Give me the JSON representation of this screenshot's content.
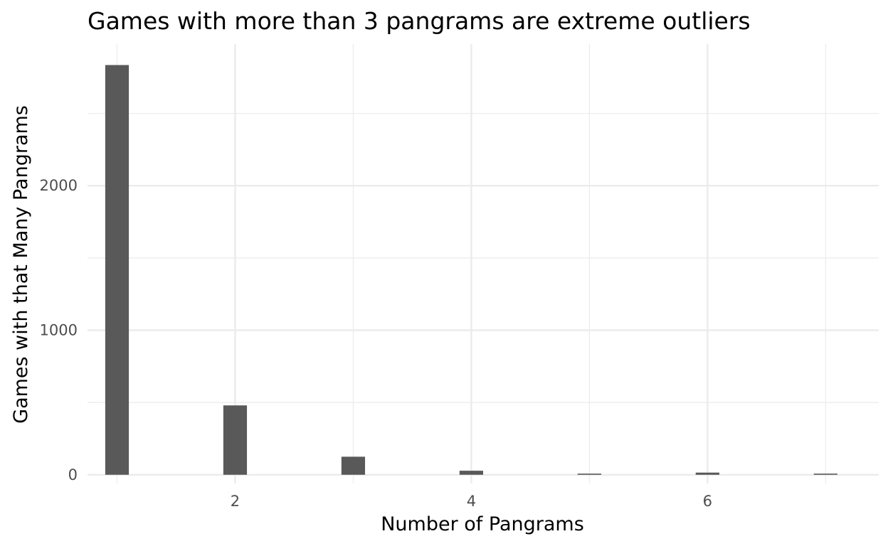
{
  "chart_data": {
    "type": "bar",
    "title": "Games with more than 3 pangrams are extreme outliers",
    "xlabel": "Number of Pangrams",
    "ylabel": "Games with that Many Pangrams",
    "x": [
      1,
      2,
      3,
      4,
      5,
      6,
      7
    ],
    "values": [
      2835,
      480,
      125,
      28,
      8,
      15,
      8
    ],
    "xlim": [
      0.75,
      7.45
    ],
    "ylim": [
      -60,
      2980
    ],
    "x_ticks": [
      2,
      4,
      6
    ],
    "x_tick_labels": [
      "2",
      "4",
      "6"
    ],
    "y_ticks": [
      0,
      1000,
      2000
    ],
    "y_tick_labels": [
      "0",
      "1000",
      "2000"
    ],
    "grid": true,
    "bar_color": "#595959",
    "grid_color": "#ebebeb"
  }
}
